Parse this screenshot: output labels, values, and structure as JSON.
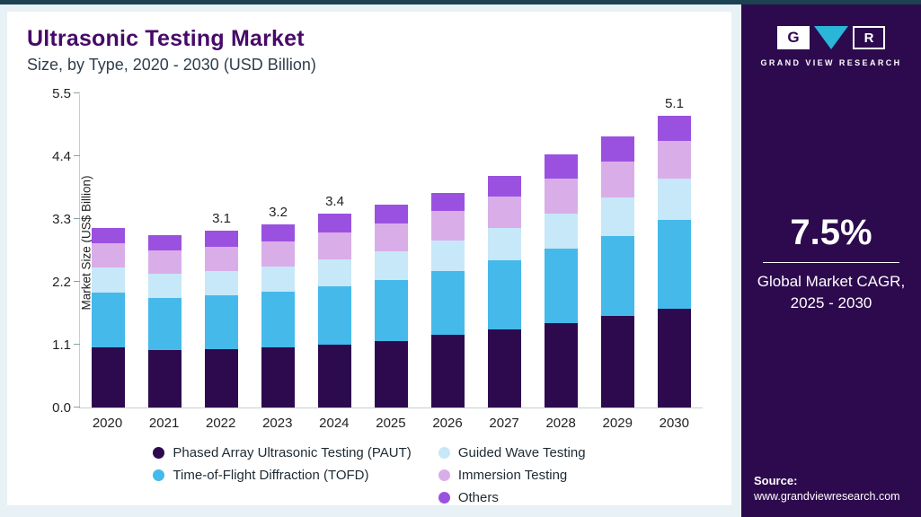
{
  "header": {
    "title": "Ultrasonic Testing Market",
    "subtitle": "Size, by Type, 2020 - 2030 (USD Billion)"
  },
  "chart_data": {
    "type": "bar",
    "stacked": true,
    "title": "Ultrasonic Testing Market Size, by Type, 2020 - 2030 (USD Billion)",
    "xlabel": "",
    "ylabel": "Market Size (US$ Billion)",
    "ylim": [
      0,
      5.5
    ],
    "yticks": [
      "0.0",
      "1.1",
      "2.2",
      "3.3",
      "4.4",
      "5.5"
    ],
    "grid": false,
    "legend_position": "bottom",
    "categories": [
      "2020",
      "2021",
      "2022",
      "2023",
      "2024",
      "2025",
      "2026",
      "2027",
      "2028",
      "2029",
      "2030"
    ],
    "series": [
      {
        "name": "Phased Array Ultrasonic Testing (PAUT)",
        "color": "#2d0a4e",
        "values": [
          1.05,
          1.0,
          1.02,
          1.05,
          1.1,
          1.17,
          1.27,
          1.37,
          1.48,
          1.6,
          1.73
        ]
      },
      {
        "name": "Time-of-Flight Diffraction (TOFD)",
        "color": "#45b9ea",
        "values": [
          0.96,
          0.92,
          0.94,
          0.97,
          1.02,
          1.06,
          1.12,
          1.2,
          1.3,
          1.4,
          1.55
        ]
      },
      {
        "name": "Guided Wave Testing",
        "color": "#c7e8f8",
        "values": [
          0.44,
          0.42,
          0.43,
          0.45,
          0.48,
          0.5,
          0.53,
          0.57,
          0.62,
          0.67,
          0.72
        ]
      },
      {
        "name": "Immersion Testing",
        "color": "#d9aee8",
        "values": [
          0.42,
          0.41,
          0.42,
          0.43,
          0.46,
          0.49,
          0.52,
          0.56,
          0.6,
          0.64,
          0.66
        ]
      },
      {
        "name": "Others",
        "color": "#9b51e0",
        "values": [
          0.28,
          0.27,
          0.29,
          0.3,
          0.34,
          0.33,
          0.31,
          0.35,
          0.43,
          0.44,
          0.44
        ]
      }
    ],
    "bar_labels": [
      "",
      "",
      "3.1",
      "3.2",
      "3.4",
      "",
      "",
      "",
      "",
      "",
      "5.1"
    ],
    "totals": [
      3.15,
      3.02,
      3.1,
      3.2,
      3.4,
      3.55,
      3.75,
      4.05,
      4.43,
      4.75,
      5.1
    ]
  },
  "sidebar": {
    "brand": "GRAND VIEW RESEARCH",
    "logo_g": "G",
    "logo_r": "R",
    "cagr_value": "7.5%",
    "cagr_label_line1": "Global Market CAGR,",
    "cagr_label_line2": "2025 - 2030",
    "source_label": "Source:",
    "source_url": "www.grandviewresearch.com",
    "bg_color": "#2d0a4e",
    "accent_teal": "#2bb5d8"
  },
  "colors": {
    "top_bar": "#1c4152",
    "page_background": "#e8f1f6",
    "card_background": "#ffffff"
  }
}
